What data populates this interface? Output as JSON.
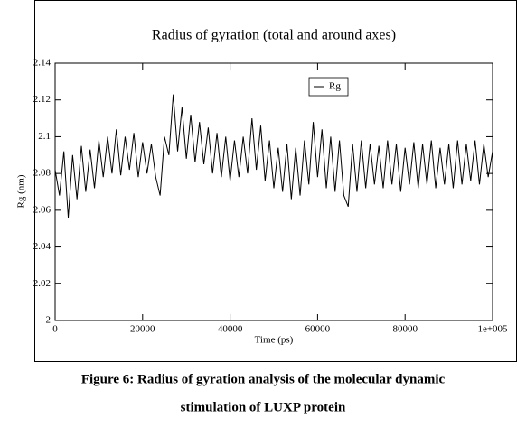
{
  "chart_data": {
    "type": "line",
    "title": "Radius of gyration (total and around axes)",
    "x_label": "Time (ps)",
    "y_label": "Rg (nm)",
    "caption": [
      "Figure 6: Radius of gyration analysis of the molecular dynamic",
      "stimulation of LUXP protein"
    ],
    "xlim": [
      0,
      100000
    ],
    "ylim": [
      2,
      2.14
    ],
    "xticks": [
      0,
      20000,
      40000,
      60000,
      80000,
      {
        "value": 100000,
        "label": "1e+005"
      }
    ],
    "yticks": [
      2,
      2.02,
      2.04,
      2.06,
      2.08,
      2.1,
      2.12,
      2.14
    ],
    "x": [
      0,
      1000,
      2000,
      3000,
      4000,
      5000,
      6000,
      7000,
      8000,
      9000,
      10000,
      11000,
      12000,
      13000,
      14000,
      15000,
      16000,
      17000,
      18000,
      19000,
      20000,
      21000,
      22000,
      23000,
      24000,
      25000,
      26000,
      27000,
      28000,
      29000,
      30000,
      31000,
      32000,
      33000,
      34000,
      35000,
      36000,
      37000,
      38000,
      39000,
      40000,
      41000,
      42000,
      43000,
      44000,
      45000,
      46000,
      47000,
      48000,
      49000,
      50000,
      51000,
      52000,
      53000,
      54000,
      55000,
      56000,
      57000,
      58000,
      59000,
      60000,
      61000,
      62000,
      63000,
      64000,
      65000,
      66000,
      67000,
      68000,
      69000,
      70000,
      71000,
      72000,
      73000,
      74000,
      75000,
      76000,
      77000,
      78000,
      79000,
      80000,
      81000,
      82000,
      83000,
      84000,
      85000,
      86000,
      87000,
      88000,
      89000,
      90000,
      91000,
      92000,
      93000,
      94000,
      95000,
      96000,
      97000,
      98000,
      99000,
      100000
    ],
    "series": [
      {
        "name": "Rg",
        "color": "#000000",
        "values": [
          2.082,
          2.068,
          2.092,
          2.056,
          2.09,
          2.066,
          2.095,
          2.07,
          2.093,
          2.072,
          2.098,
          2.078,
          2.1,
          2.08,
          2.104,
          2.079,
          2.1,
          2.082,
          2.102,
          2.078,
          2.097,
          2.08,
          2.096,
          2.078,
          2.068,
          2.1,
          2.09,
          2.123,
          2.092,
          2.116,
          2.088,
          2.112,
          2.086,
          2.108,
          2.085,
          2.105,
          2.08,
          2.102,
          2.078,
          2.1,
          2.076,
          2.098,
          2.078,
          2.1,
          2.08,
          2.11,
          2.082,
          2.106,
          2.076,
          2.098,
          2.072,
          2.094,
          2.07,
          2.096,
          2.066,
          2.094,
          2.068,
          2.098,
          2.074,
          2.108,
          2.078,
          2.104,
          2.072,
          2.1,
          2.07,
          2.098,
          2.068,
          2.062,
          2.096,
          2.07,
          2.098,
          2.072,
          2.096,
          2.074,
          2.095,
          2.072,
          2.098,
          2.074,
          2.096,
          2.07,
          2.094,
          2.074,
          2.097,
          2.072,
          2.096,
          2.074,
          2.098,
          2.072,
          2.094,
          2.074,
          2.096,
          2.072,
          2.098,
          2.074,
          2.096,
          2.076,
          2.098,
          2.074,
          2.096,
          2.078,
          2.092
        ]
      }
    ]
  }
}
